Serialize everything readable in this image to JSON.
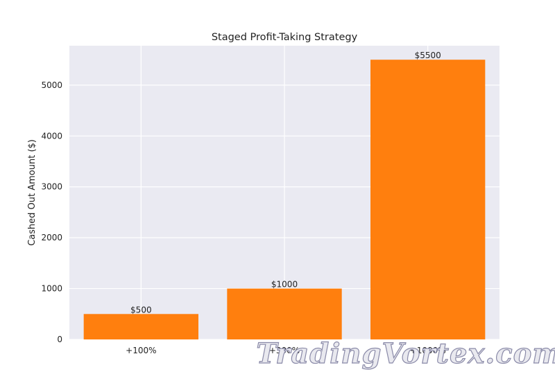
{
  "chart_data": {
    "type": "bar",
    "title": "Staged Profit-Taking Strategy",
    "xlabel": "",
    "ylabel": "Cashed Out Amount ($)",
    "categories": [
      "+100%",
      "+300%",
      "+1000%"
    ],
    "values": [
      500,
      1000,
      5500
    ],
    "data_labels": [
      "$500",
      "$1000",
      "$5500"
    ],
    "yticks": [
      0,
      1000,
      2000,
      3000,
      4000,
      5000
    ],
    "ylim": [
      0,
      5775
    ],
    "grid": true,
    "bar_color": "#ff7f0e",
    "background_color": "#eaeaf2",
    "grid_color": "#ffffff"
  },
  "watermark": {
    "text": "TradingVortex.com"
  }
}
